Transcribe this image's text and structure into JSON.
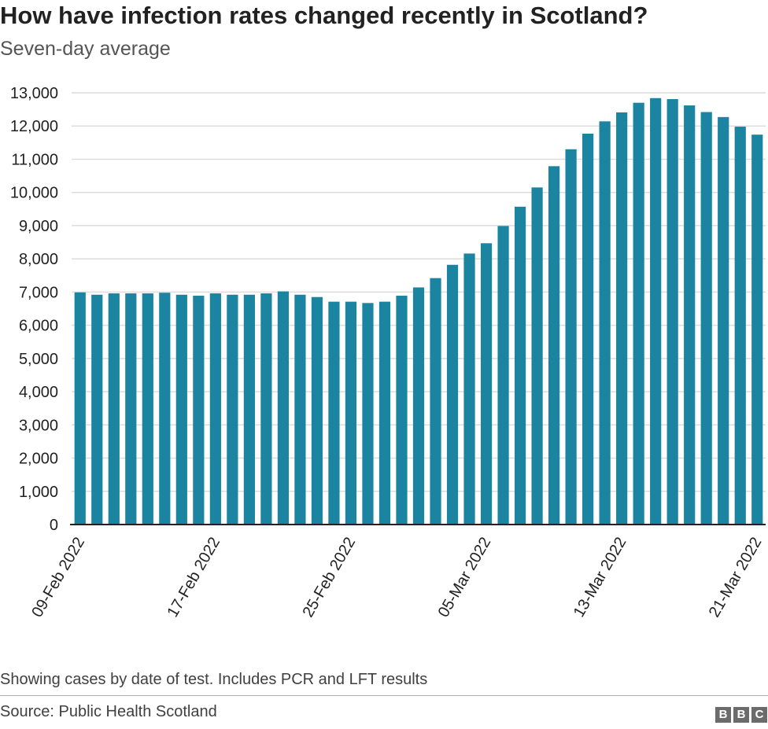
{
  "title": "How have infection rates changed recently in Scotland?",
  "subtitle": "Seven-day average",
  "footnote": "Showing cases by date of test. Includes PCR and LFT results",
  "source": "Source: Public Health Scotland",
  "logo": {
    "letters": [
      "B",
      "B",
      "C"
    ],
    "color": "#6b6b6b"
  },
  "colors": {
    "bar": "#1b84a0",
    "grid": "#dcdcdc",
    "axis": "#222222"
  },
  "chart_data": {
    "type": "bar",
    "title": "How have infection rates changed recently in Scotland?",
    "subtitle": "Seven-day average",
    "xlabel": "",
    "ylabel": "",
    "ylim": [
      0,
      13000
    ],
    "yticks": [
      0,
      1000,
      2000,
      3000,
      4000,
      5000,
      6000,
      7000,
      8000,
      9000,
      10000,
      11000,
      12000,
      13000
    ],
    "ytick_labels": [
      "0",
      "1,000",
      "2,000",
      "3,000",
      "4,000",
      "5,000",
      "6,000",
      "7,000",
      "8,000",
      "9,000",
      "10,000",
      "11,000",
      "12,000",
      "13,000"
    ],
    "grid": true,
    "categories": [
      "09-Feb 2022",
      "10-Feb 2022",
      "11-Feb 2022",
      "12-Feb 2022",
      "13-Feb 2022",
      "14-Feb 2022",
      "15-Feb 2022",
      "16-Feb 2022",
      "17-Feb 2022",
      "18-Feb 2022",
      "19-Feb 2022",
      "20-Feb 2022",
      "21-Feb 2022",
      "22-Feb 2022",
      "23-Feb 2022",
      "24-Feb 2022",
      "25-Feb 2022",
      "26-Feb 2022",
      "27-Feb 2022",
      "28-Feb 2022",
      "01-Mar 2022",
      "02-Mar 2022",
      "03-Mar 2022",
      "04-Mar 2022",
      "05-Mar 2022",
      "06-Mar 2022",
      "07-Mar 2022",
      "08-Mar 2022",
      "09-Mar 2022",
      "10-Mar 2022",
      "11-Mar 2022",
      "12-Mar 2022",
      "13-Mar 2022",
      "14-Mar 2022",
      "15-Mar 2022",
      "16-Mar 2022",
      "17-Mar 2022",
      "18-Mar 2022",
      "19-Mar 2022",
      "20-Mar 2022",
      "21-Mar 2022"
    ],
    "values": [
      6990,
      6920,
      6960,
      6960,
      6960,
      6980,
      6920,
      6890,
      6960,
      6920,
      6920,
      6960,
      7020,
      6920,
      6850,
      6710,
      6710,
      6670,
      6710,
      6890,
      7140,
      7420,
      7820,
      8160,
      8470,
      8990,
      9570,
      10150,
      10790,
      11300,
      11770,
      12140,
      12410,
      12700,
      12840,
      12810,
      12620,
      12420,
      12270,
      11980,
      11740
    ],
    "xtick_labels": [
      "09-Feb 2022",
      "17-Feb 2022",
      "25-Feb 2022",
      "05-Mar 2022",
      "13-Mar 2022",
      "21-Mar 2022"
    ]
  }
}
